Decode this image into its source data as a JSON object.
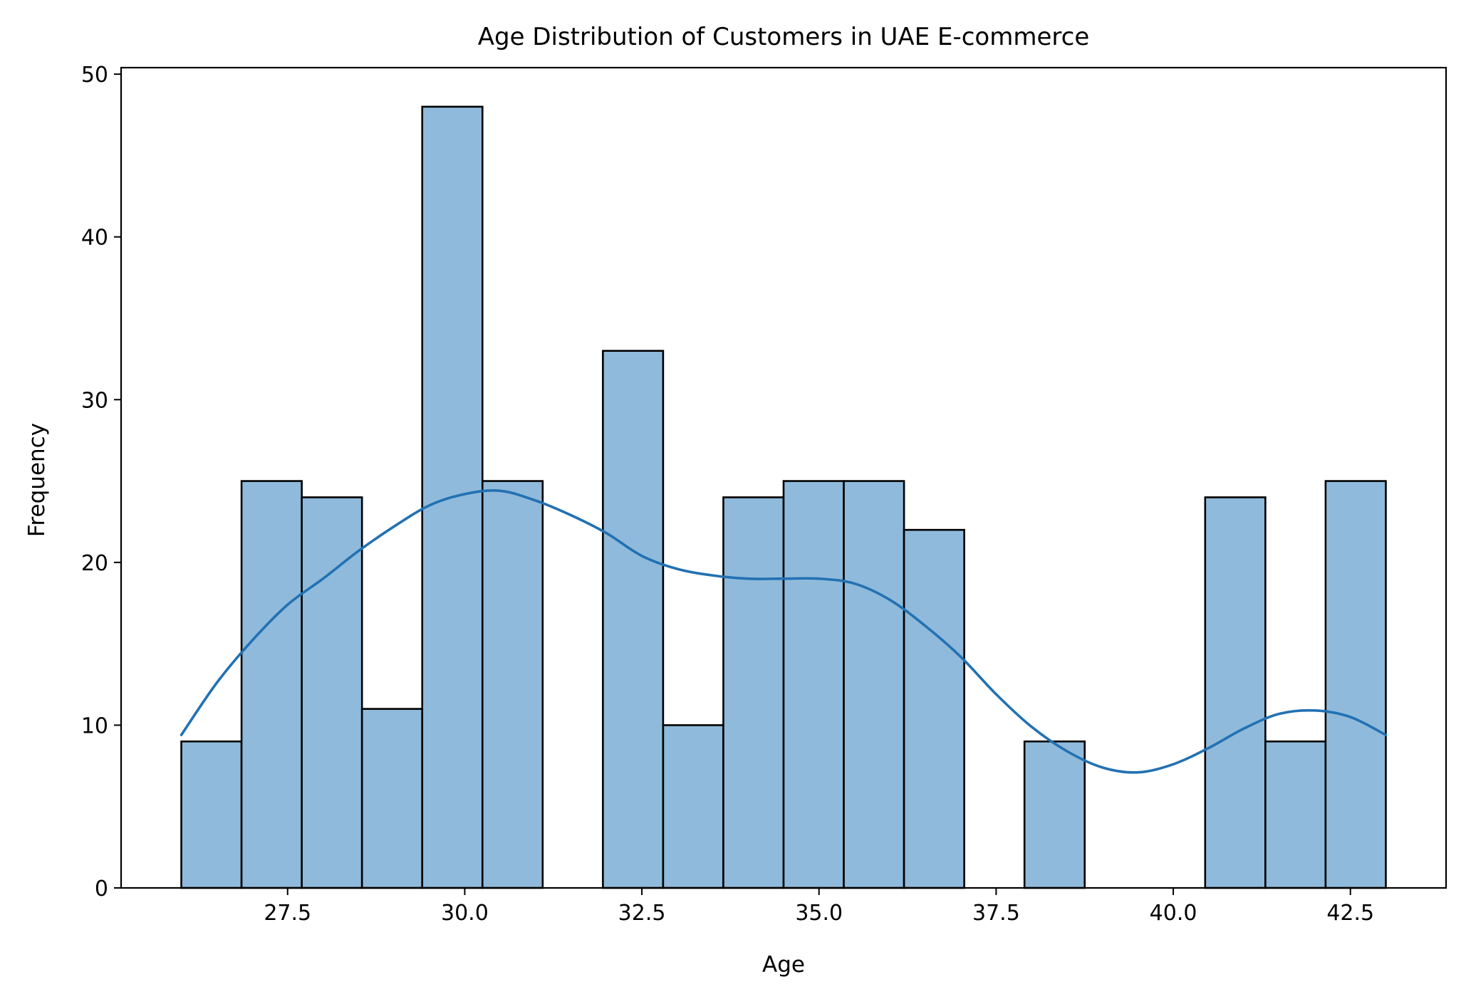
{
  "chart_data": {
    "type": "bar",
    "subtype": "histogram",
    "title": "Age Distribution of Customers in UAE E-commerce",
    "xlabel": "Age",
    "ylabel": "Frequency",
    "xlim": [
      25.15,
      43.85
    ],
    "ylim": [
      0,
      50.4
    ],
    "xticks": [
      27.5,
      30.0,
      32.5,
      35.0,
      37.5,
      40.0,
      42.5
    ],
    "xtick_labels": [
      "27.5",
      "30.0",
      "32.5",
      "35.0",
      "37.5",
      "40.0",
      "42.5"
    ],
    "yticks": [
      0,
      10,
      20,
      30,
      40,
      50
    ],
    "ytick_labels": [
      "0",
      "10",
      "20",
      "30",
      "40",
      "50"
    ],
    "grid": false,
    "bins": {
      "start": 26.0,
      "end": 43.0,
      "counts": [
        9,
        25,
        24,
        11,
        48,
        25,
        0,
        33,
        10,
        24,
        25,
        25,
        22,
        0,
        9,
        0,
        0,
        24,
        9,
        25
      ]
    },
    "kde": {
      "x": [
        26.0,
        26.5,
        27.0,
        27.5,
        28.0,
        28.5,
        29.0,
        29.5,
        30.0,
        30.5,
        31.0,
        31.5,
        32.0,
        32.5,
        33.0,
        33.5,
        34.0,
        34.5,
        35.0,
        35.5,
        36.0,
        36.5,
        37.0,
        37.5,
        38.0,
        38.5,
        39.0,
        39.5,
        40.0,
        40.5,
        41.0,
        41.5,
        42.0,
        42.5,
        43.0
      ],
      "y": [
        9.4,
        12.6,
        15.2,
        17.4,
        19.0,
        20.7,
        22.2,
        23.5,
        24.2,
        24.4,
        23.8,
        22.9,
        21.8,
        20.4,
        19.6,
        19.2,
        19.0,
        19.0,
        19.0,
        18.7,
        17.7,
        16.1,
        14.2,
        11.9,
        9.9,
        8.4,
        7.4,
        7.1,
        7.6,
        8.6,
        9.8,
        10.7,
        10.9,
        10.5,
        9.4
      ]
    },
    "colors": {
      "bar_fill": "#8fbadb",
      "bar_edge": "#000000",
      "kde_line": "#2271b3"
    }
  }
}
